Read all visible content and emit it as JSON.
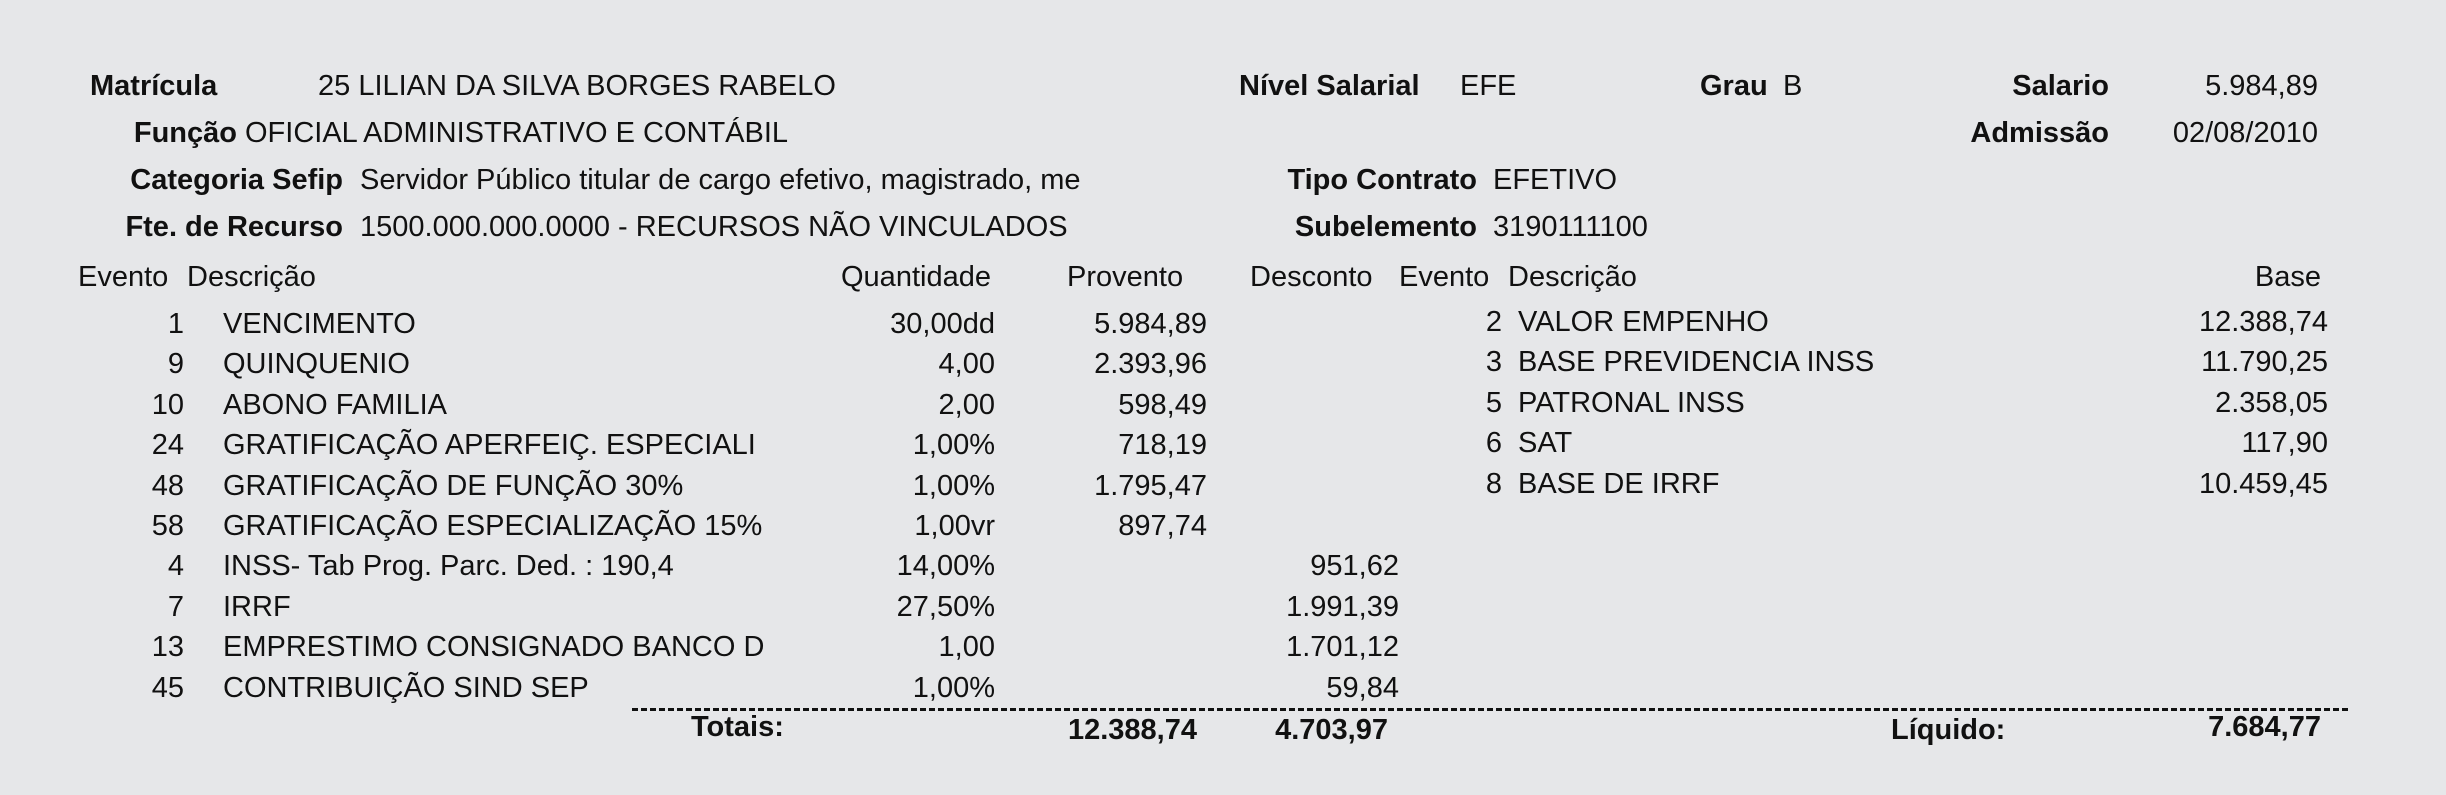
{
  "header": {
    "matricula_label": "Matrícula",
    "matricula_value": "25 LILIAN DA SILVA BORGES RABELO",
    "funcao_label": "Função",
    "funcao_value": "OFICIAL ADMINISTRATIVO E CONTÁBIL",
    "categoria_label": "Categoria Sefip",
    "categoria_value": "Servidor Público titular de cargo efetivo, magistrado, me",
    "fonte_label": "Fte. de Recurso",
    "fonte_value": "1500.000.000.0000 - RECURSOS NÃO VINCULADOS",
    "nivel_label": "Nível Salarial",
    "nivel_value": "EFE",
    "grau_label": "Grau",
    "grau_value": "B",
    "salario_label": "Salario",
    "salario_value": "5.984,89",
    "admissao_label": "Admissão",
    "admissao_value": "02/08/2010",
    "tipo_label": "Tipo Contrato",
    "tipo_value": "EFETIVO",
    "subelemento_label": "Subelemento",
    "subelemento_value": "3190111100"
  },
  "columns": {
    "evento": "Evento",
    "descricao": "Descrição",
    "quantidade": "Quantidade",
    "provento": "Provento",
    "desconto": "Desconto",
    "evento2": "Evento",
    "descricao2": "Descrição",
    "base": "Base"
  },
  "events": [
    {
      "code": "1",
      "desc": "VENCIMENTO",
      "qty": "30,00dd",
      "provento": "5.984,89",
      "desconto": ""
    },
    {
      "code": "9",
      "desc": "QUINQUENIO",
      "qty": "4,00",
      "provento": "2.393,96",
      "desconto": ""
    },
    {
      "code": "10",
      "desc": "ABONO FAMILIA",
      "qty": "2,00",
      "provento": "598,49",
      "desconto": ""
    },
    {
      "code": "24",
      "desc": "GRATIFICAÇÃO APERFEIÇ. ESPECIALI",
      "qty": "1,00%",
      "provento": "718,19",
      "desconto": ""
    },
    {
      "code": "48",
      "desc": "GRATIFICAÇÃO DE FUNÇÃO 30%",
      "qty": "1,00%",
      "provento": "1.795,47",
      "desconto": ""
    },
    {
      "code": "58",
      "desc": "GRATIFICAÇÃO ESPECIALIZAÇÃO 15%",
      "qty": "1,00vr",
      "provento": "897,74",
      "desconto": ""
    },
    {
      "code": "4",
      "desc": "INSS- Tab Prog. Parc. Ded. : 190,4",
      "qty": "14,00%",
      "provento": "",
      "desconto": "951,62"
    },
    {
      "code": "7",
      "desc": "IRRF",
      "qty": "27,50%",
      "provento": "",
      "desconto": "1.991,39"
    },
    {
      "code": "13",
      "desc": "EMPRESTIMO CONSIGNADO BANCO D",
      "qty": "1,00",
      "provento": "",
      "desconto": "1.701,12"
    },
    {
      "code": "45",
      "desc": "CONTRIBUIÇÃO SIND SEP",
      "qty": "1,00%",
      "provento": "",
      "desconto": "59,84"
    }
  ],
  "bases": [
    {
      "code": "2",
      "desc": "VALOR EMPENHO",
      "base": "12.388,74"
    },
    {
      "code": "3",
      "desc": "BASE PREVIDENCIA INSS",
      "base": "11.790,25"
    },
    {
      "code": "5",
      "desc": "PATRONAL INSS",
      "base": "2.358,05"
    },
    {
      "code": "6",
      "desc": "SAT",
      "base": "117,90"
    },
    {
      "code": "8",
      "desc": "BASE DE IRRF",
      "base": "10.459,45"
    }
  ],
  "totals": {
    "label": "Totais:",
    "proventos": "12.388,74",
    "descontos": "4.703,97",
    "liquido_label": "Líquido:",
    "liquido": "7.684,77"
  }
}
